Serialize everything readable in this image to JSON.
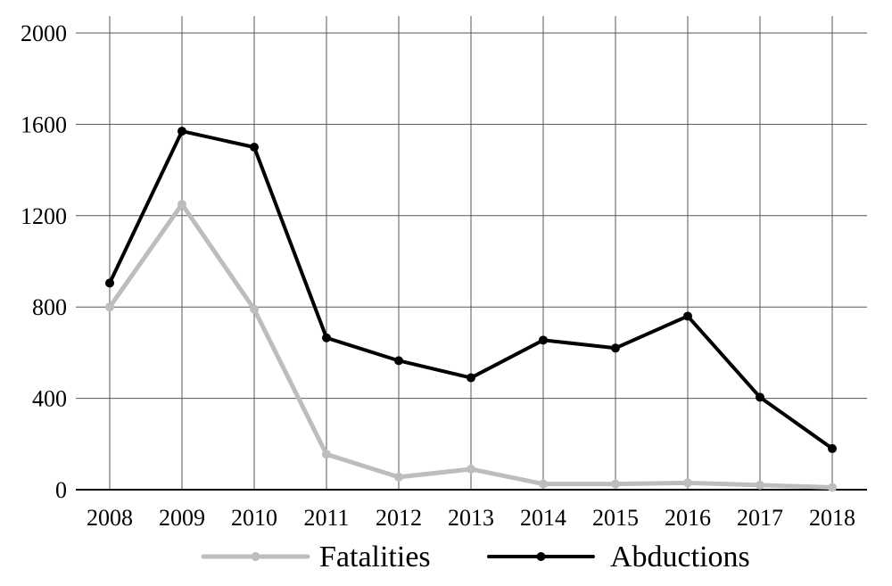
{
  "chart_data": {
    "type": "line",
    "title": "",
    "xlabel": "",
    "ylabel": "",
    "x": [
      2008,
      2009,
      2010,
      2011,
      2012,
      2013,
      2014,
      2015,
      2016,
      2017,
      2018
    ],
    "x_tick_labels": [
      "2008",
      "2009",
      "2010",
      "2011",
      "2012",
      "2013",
      "2014",
      "2015",
      "2016",
      "2017",
      "2018"
    ],
    "ylim": [
      0,
      2000
    ],
    "y_ticks": [
      0,
      400,
      800,
      1200,
      1600,
      2000
    ],
    "y_tick_labels": [
      "0",
      "400",
      "800",
      "1200",
      "1600",
      "2000"
    ],
    "grid": true,
    "legend_position": "bottom",
    "series": [
      {
        "name": "Fatalities",
        "color": "#bdbdbd",
        "values": [
          800,
          1250,
          790,
          155,
          55,
          90,
          25,
          25,
          30,
          20,
          10
        ]
      },
      {
        "name": "Abductions",
        "color": "#000000",
        "values": [
          905,
          1570,
          1500,
          665,
          565,
          490,
          655,
          620,
          760,
          405,
          180
        ]
      }
    ]
  }
}
